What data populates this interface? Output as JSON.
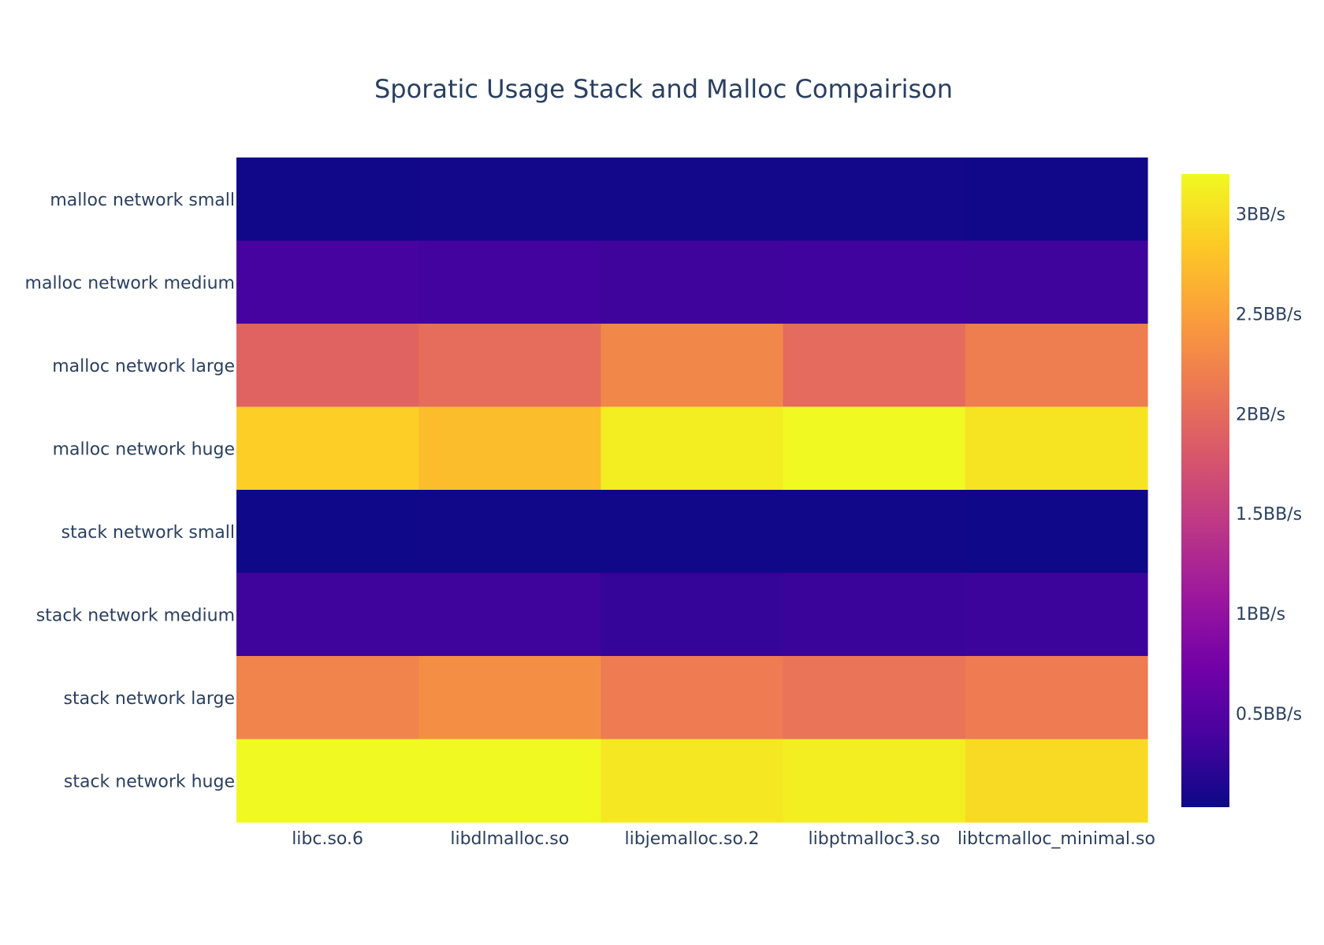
{
  "chart_data": {
    "type": "heatmap",
    "title": "Sporatic Usage Stack and Malloc Compairison",
    "xlabel": "",
    "ylabel": "",
    "x_categories": [
      "libc.so.6",
      "libdlmalloc.so",
      "libjemalloc.so.2",
      "libptmalloc3.so",
      "libtcmalloc_minimal.so"
    ],
    "y_categories": [
      "malloc network small",
      "malloc network medium",
      "malloc network large",
      "malloc network huge",
      "stack network small",
      "stack network medium",
      "stack network large",
      "stack network huge"
    ],
    "z": [
      [
        0.05,
        0.06,
        0.06,
        0.06,
        0.05
      ],
      [
        0.38,
        0.36,
        0.34,
        0.35,
        0.33
      ],
      [
        1.92,
        2.02,
        2.27,
        2.0,
        2.18
      ],
      [
        2.88,
        2.74,
        3.12,
        3.26,
        3.04
      ],
      [
        0.04,
        0.05,
        0.05,
        0.05,
        0.04
      ],
      [
        0.33,
        0.34,
        0.28,
        0.31,
        0.32
      ],
      [
        2.24,
        2.34,
        2.16,
        2.09,
        2.16
      ],
      [
        3.26,
        3.2,
        3.07,
        3.12,
        2.97
      ]
    ],
    "zrange": [
      0.03,
      3.2
    ],
    "colorscale": "plasma",
    "colorbar": {
      "tick_values": [
        0.5,
        1,
        1.5,
        2,
        2.5,
        3
      ],
      "tick_labels": [
        "0.5BB/s",
        "1BB/s",
        "1.5BB/s",
        "2BB/s",
        "2.5BB/s",
        "3BB/s"
      ]
    }
  }
}
